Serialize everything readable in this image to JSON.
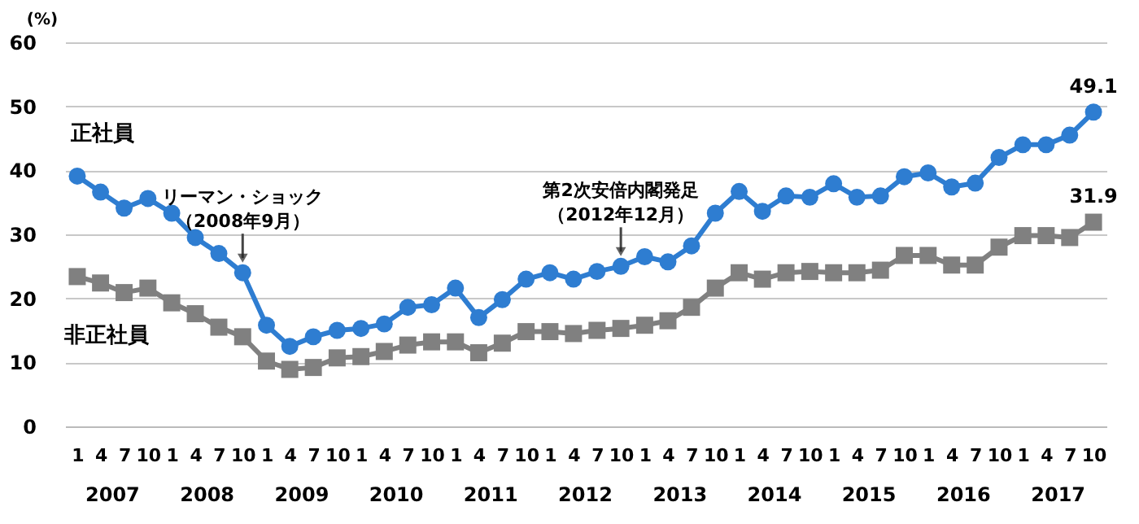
{
  "chart_data": {
    "type": "line",
    "ylabel": "(%)",
    "x": [
      "2007-01",
      "2007-04",
      "2007-07",
      "2007-10",
      "2008-01",
      "2008-04",
      "2008-07",
      "2008-10",
      "2009-01",
      "2009-04",
      "2009-07",
      "2009-10",
      "2010-01",
      "2010-04",
      "2010-07",
      "2010-10",
      "2011-01",
      "2011-04",
      "2011-07",
      "2011-10",
      "2012-01",
      "2012-04",
      "2012-07",
      "2012-10",
      "2013-01",
      "2013-04",
      "2013-07",
      "2013-10",
      "2014-01",
      "2014-04",
      "2014-07",
      "2014-10",
      "2015-01",
      "2015-04",
      "2015-07",
      "2015-10",
      "2016-01",
      "2016-04",
      "2016-07",
      "2016-10",
      "2017-01",
      "2017-04",
      "2017-07",
      "2017-10"
    ],
    "series": [
      {
        "name": "正社員",
        "color": "#2e7dd1",
        "marker": "circle",
        "values": [
          39.1,
          36.6,
          34.1,
          35.6,
          33.3,
          29.5,
          27,
          24,
          15.8,
          12.5,
          14,
          15,
          15.3,
          16,
          18.6,
          19,
          21.6,
          17,
          19.8,
          23,
          24,
          23,
          24.2,
          25,
          26.5,
          25.7,
          28.2,
          33.3,
          36.7,
          33.6,
          36,
          35.8,
          37.9,
          35.8,
          36,
          39,
          39.6,
          37.4,
          38,
          42,
          44,
          44,
          45.5,
          49.1
        ],
        "value_labels": [
          null,
          null,
          null,
          null,
          null,
          null,
          null,
          null,
          null,
          null,
          null,
          null,
          null,
          null,
          null,
          null,
          null,
          null,
          null,
          null,
          null,
          null,
          null,
          null,
          null,
          null,
          null,
          null,
          null,
          null,
          null,
          null,
          null,
          null,
          null,
          null,
          null,
          null,
          null,
          null,
          null,
          null,
          null,
          "49.1"
        ]
      },
      {
        "name": "非正社員",
        "color": "#808080",
        "marker": "square",
        "values": [
          23.4,
          22.4,
          20.9,
          21.6,
          19.3,
          17.6,
          15.5,
          14,
          10.2,
          8.9,
          9.2,
          10.7,
          10.9,
          11.7,
          12.7,
          13.2,
          13.2,
          11.5,
          13,
          14.8,
          14.8,
          14.5,
          15,
          15.3,
          15.8,
          16.5,
          18.6,
          21.6,
          24,
          23,
          24,
          24.2,
          24,
          24,
          24.4,
          26.7,
          26.7,
          25.2,
          25.2,
          28,
          29.8,
          29.8,
          29.5,
          31.9
        ],
        "value_labels": [
          null,
          null,
          null,
          null,
          null,
          null,
          null,
          null,
          null,
          null,
          null,
          null,
          null,
          null,
          null,
          null,
          null,
          null,
          null,
          null,
          null,
          null,
          null,
          null,
          null,
          null,
          null,
          null,
          null,
          null,
          null,
          null,
          null,
          null,
          null,
          null,
          null,
          null,
          null,
          null,
          null,
          null,
          null,
          "31.9"
        ]
      }
    ],
    "xlim": [
      "2006-11-15",
      "2017-11-20"
    ],
    "xticks": [
      {
        "value": "2007-01",
        "label": "1"
      },
      {
        "value": "2007-04",
        "label": "4"
      },
      {
        "value": "2007-07",
        "label": "7"
      },
      {
        "value": "2007-10",
        "label": "10"
      },
      {
        "value": "2008-01",
        "label": "1"
      },
      {
        "value": "2008-04",
        "label": "4"
      },
      {
        "value": "2008-07",
        "label": "7"
      },
      {
        "value": "2008-10",
        "label": "10"
      },
      {
        "value": "2009-01",
        "label": "1"
      },
      {
        "value": "2009-04",
        "label": "4"
      },
      {
        "value": "2009-07",
        "label": "7"
      },
      {
        "value": "2009-10",
        "label": "10"
      },
      {
        "value": "2010-01",
        "label": "1"
      },
      {
        "value": "2010-04",
        "label": "4"
      },
      {
        "value": "2010-07",
        "label": "7"
      },
      {
        "value": "2010-10",
        "label": "10"
      },
      {
        "value": "2011-01",
        "label": "1"
      },
      {
        "value": "2011-04",
        "label": "4"
      },
      {
        "value": "2011-07",
        "label": "7"
      },
      {
        "value": "2011-10",
        "label": "10"
      },
      {
        "value": "2012-01",
        "label": "1"
      },
      {
        "value": "2012-04",
        "label": "4"
      },
      {
        "value": "2012-07",
        "label": "7"
      },
      {
        "value": "2012-10",
        "label": "10"
      },
      {
        "value": "2013-01",
        "label": "1"
      },
      {
        "value": "2013-04",
        "label": "4"
      },
      {
        "value": "2013-07",
        "label": "7"
      },
      {
        "value": "2013-10",
        "label": "10"
      },
      {
        "value": "2014-01",
        "label": "1"
      },
      {
        "value": "2014-04",
        "label": "4"
      },
      {
        "value": "2014-07",
        "label": "7"
      },
      {
        "value": "2014-10",
        "label": "10"
      },
      {
        "value": "2015-01",
        "label": "1"
      },
      {
        "value": "2015-04",
        "label": "4"
      },
      {
        "value": "2015-07",
        "label": "7"
      },
      {
        "value": "2015-10",
        "label": "10"
      },
      {
        "value": "2016-01",
        "label": "1"
      },
      {
        "value": "2016-04",
        "label": "4"
      },
      {
        "value": "2016-07",
        "label": "7"
      },
      {
        "value": "2016-10",
        "label": "10"
      },
      {
        "value": "2017-01",
        "label": "1"
      },
      {
        "value": "2017-04",
        "label": "4"
      },
      {
        "value": "2017-07",
        "label": "7"
      },
      {
        "value": "2017-10",
        "label": "10"
      }
    ],
    "ylim": [
      0,
      60
    ],
    "yticks": [
      0,
      10,
      20,
      30,
      40,
      50,
      60
    ],
    "grid": "y",
    "legend": false,
    "annotations": [
      {
        "text": "リーマン・ショック（2008年9月）",
        "x": "2008-10",
        "y": 24
      },
      {
        "text": "第2次安倍内閣発足（2012年12月）",
        "x": "2012-10",
        "y": 25
      },
      "2007",
      "2008",
      "2009",
      "2010",
      "2011",
      "2012",
      "2013",
      "2014",
      "2015",
      "2016",
      "2017"
    ]
  }
}
